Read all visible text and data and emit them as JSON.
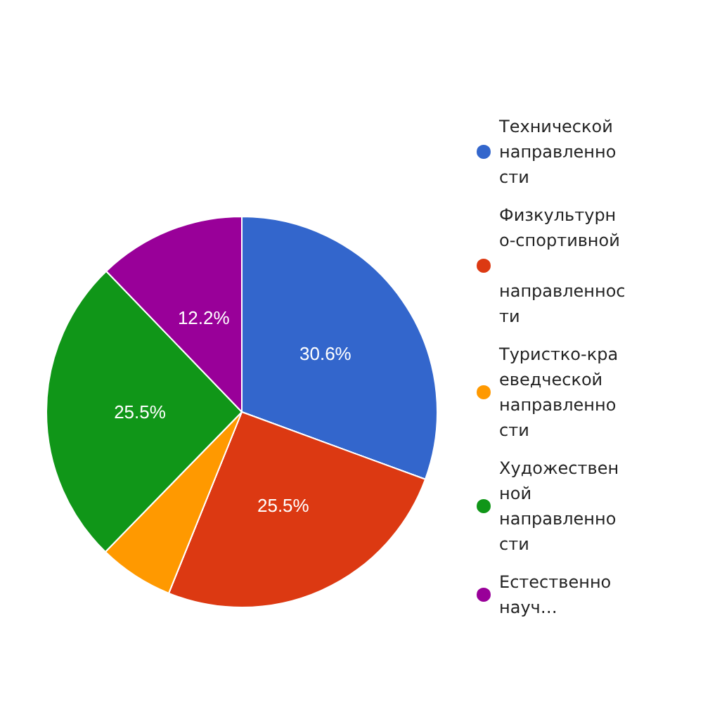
{
  "chart_data": {
    "type": "pie",
    "categories": [
      "Технической направленности",
      "Физкультурно-спортивной направленности",
      "Туристко-краеведческой направленности",
      "Художественной направленности",
      "Естественнонауч…"
    ],
    "values": [
      30.6,
      25.5,
      6.2,
      25.5,
      12.2
    ],
    "colors": [
      "#3366cc",
      "#dc3912",
      "#ff9900",
      "#109618",
      "#990099"
    ],
    "value_labels": [
      "30.6%",
      "25.5%",
      null,
      "25.5%",
      "12.2%"
    ],
    "legend": "right"
  }
}
